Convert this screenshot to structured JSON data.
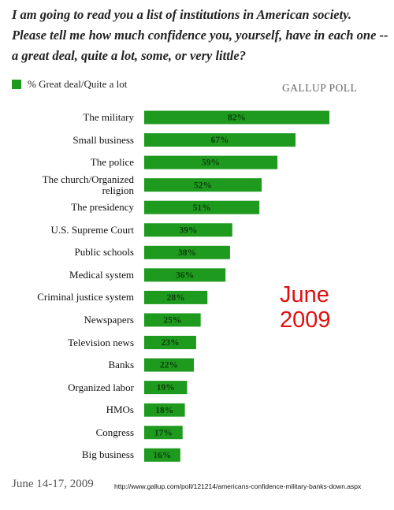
{
  "chart_data": {
    "type": "bar",
    "orientation": "horizontal",
    "title": "I am going to read you a list of institutions in American society. Please tell me how much confidence you, yourself, have in each one -- a great deal, quite a lot, some, or very little?",
    "series": [
      {
        "name": "% Great deal/Quite a lot",
        "color": "#1e9a1e",
        "values": [
          82,
          67,
          59,
          52,
          51,
          39,
          38,
          36,
          28,
          25,
          23,
          22,
          19,
          18,
          17,
          16
        ],
        "value_labels": [
          "82%",
          "67%",
          "59%",
          "52%",
          "51%",
          "39%",
          "38%",
          "36%",
          "28%",
          "25%",
          "23%",
          "22%",
          "19%",
          "18%",
          "17%",
          "16%"
        ]
      }
    ],
    "categories": [
      "The military",
      "Small business",
      "The police",
      "The church/Organized religion",
      "The presidency",
      "U.S. Supreme Court",
      "Public schools",
      "Medical system",
      "Criminal justice system",
      "Newspapers",
      "Television news",
      "Banks",
      "Organized labor",
      "HMOs",
      "Congress",
      "Big business"
    ],
    "source": "GALLUP POLL",
    "annotation": "June 2009",
    "date": "June 14-17, 2009",
    "url": "http://www.gallup.com/poll/121214/americans-confidence-military-banks-down.aspx"
  }
}
